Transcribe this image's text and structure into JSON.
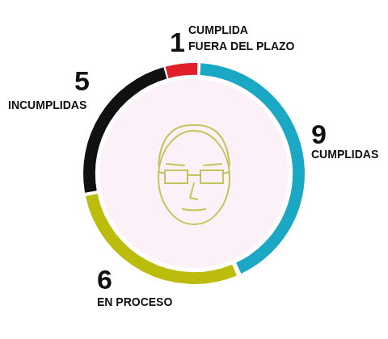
{
  "chart_data": {
    "type": "doughnut",
    "categories": [
      "CUMPLIDAS",
      "EN PROCESO",
      "INCUMPLIDAS",
      "CUMPLIDA FUERA DEL PLAZO"
    ],
    "values": [
      9,
      6,
      5,
      1
    ],
    "colors": [
      "#1aa8c4",
      "#bcbc0c",
      "#111111",
      "#e01f2b"
    ],
    "data_labels": true
  }
}
